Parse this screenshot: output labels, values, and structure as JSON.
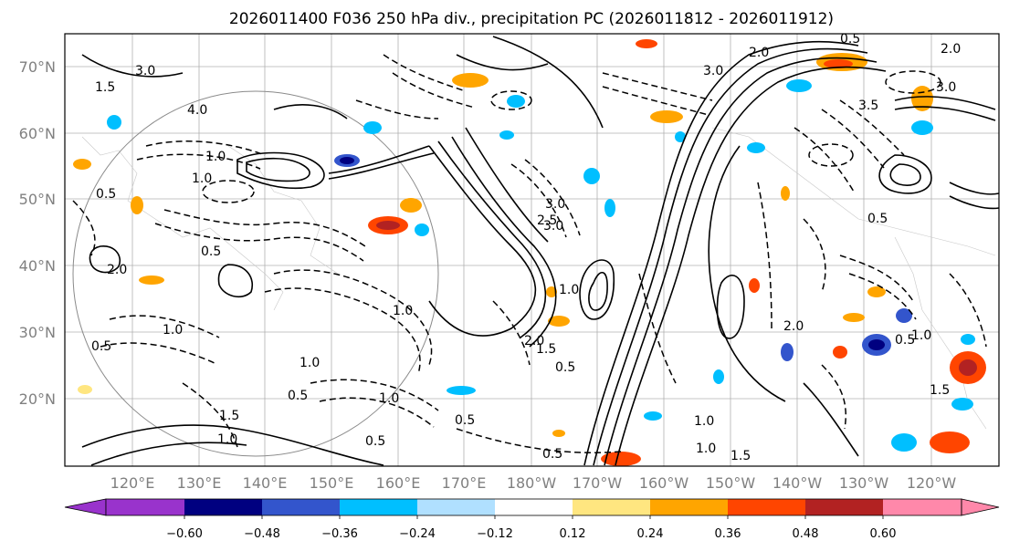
{
  "title": "2026011400 F036 250 hPa div., precipitation PC (2026011812 - 2026011912)",
  "lat_labels": [
    "70°N",
    "60°N",
    "50°N",
    "40°N",
    "30°N",
    "20°N"
  ],
  "lon_labels": [
    "120°E",
    "130°E",
    "140°E",
    "150°E",
    "160°E",
    "170°E",
    "180°W",
    "170°W",
    "160°W",
    "150°W",
    "140°W",
    "130°W",
    "120°W"
  ],
  "colorbar": {
    "colors": [
      "#9933cc",
      "#000080",
      "#3355cc",
      "#00bfff",
      "#b0e0ff",
      "#ffffff",
      "#ffe680",
      "#ffa500",
      "#ff4500",
      "#b22222",
      "#ff88aa"
    ],
    "ticks": [
      "−0.60",
      "−0.48",
      "−0.36",
      "−0.24",
      "−0.12",
      "0.12",
      "0.24",
      "0.36",
      "0.48",
      "0.60"
    ]
  },
  "contour_labels": [
    "3.0",
    "2.0",
    "3.0",
    "1.5",
    "4.0",
    "1.0",
    "0.5",
    "2.5",
    "3.5",
    "2.0",
    "1.0",
    "0.5",
    "3.0",
    "0.5",
    "1.0",
    "1.5",
    "2.0",
    "1.0",
    "0.5",
    "1.0",
    "3.0",
    "0.5",
    "1.5",
    "0.5",
    "1.0",
    "2.0",
    "1.0",
    "1.5",
    "0.5",
    "1.0",
    "2.0",
    "1.0",
    "0.5",
    "1.0",
    "1.5",
    "0.5",
    "3.0",
    "1.0",
    "0.5",
    "0.5"
  ]
}
